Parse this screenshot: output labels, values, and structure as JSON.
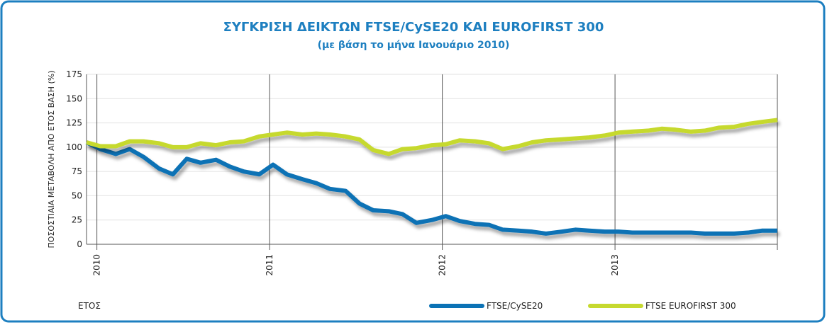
{
  "chart_data": {
    "type": "line",
    "title": "ΣΥΓΚΡΙΣΗ ΔΕΙΚΤΩΝ FTSE/CySE20 ΚΑΙ EUROFIRST 300",
    "subtitle": "(με βάση το μήνα Ιανουάριο 2010)",
    "y_label": "ΠΟΣΟΣΤΙΑΙΑ ΜΕΤΑΒΟΛΗ ΑΠΟ ΕΤΟΣ ΒΑΣΗ (%)",
    "x_label": "ΕΤΟΣ",
    "x": [
      2009.94,
      2010.02,
      2010.11,
      2010.19,
      2010.27,
      2010.36,
      2010.44,
      2010.52,
      2010.6,
      2010.69,
      2010.77,
      2010.85,
      2010.94,
      2011.02,
      2011.1,
      2011.19,
      2011.27,
      2011.35,
      2011.44,
      2011.52,
      2011.6,
      2011.69,
      2011.77,
      2011.85,
      2011.94,
      2012.02,
      2012.1,
      2012.19,
      2012.27,
      2012.35,
      2012.44,
      2012.52,
      2012.6,
      2012.69,
      2012.77,
      2012.85,
      2012.94,
      2013.02,
      2013.1,
      2013.19,
      2013.27,
      2013.35,
      2013.44,
      2013.52,
      2013.6,
      2013.69,
      2013.77,
      2013.85,
      2013.94
    ],
    "series": [
      {
        "name": "FTSE/CySE20",
        "color": "#0b72b5",
        "values": [
          105,
          98,
          93,
          98,
          90,
          78,
          72,
          88,
          84,
          87,
          80,
          75,
          72,
          82,
          72,
          67,
          63,
          57,
          55,
          42,
          35,
          34,
          31,
          22,
          25,
          29,
          24,
          21,
          20,
          15,
          14,
          13,
          11,
          13,
          15,
          14,
          13,
          13,
          12,
          12,
          12,
          12,
          12,
          11,
          11,
          11,
          12,
          14,
          14
        ]
      },
      {
        "name": "FTSE EUROFIRST 300",
        "color": "#c6d92f",
        "values": [
          105,
          101,
          101,
          106,
          106,
          104,
          100,
          100,
          104,
          102,
          105,
          106,
          111,
          113,
          115,
          113,
          114,
          113,
          111,
          108,
          97,
          93,
          98,
          99,
          102,
          103,
          107,
          106,
          104,
          98,
          101,
          105,
          107,
          108,
          109,
          110,
          112,
          115,
          116,
          117,
          119,
          118,
          116,
          117,
          120,
          121,
          124,
          126,
          128
        ]
      }
    ],
    "xlim": [
      2009.94,
      2013.94
    ],
    "xticks": [
      2010,
      2011,
      2012,
      2013
    ],
    "ylim": [
      0,
      175
    ],
    "yticks": [
      0,
      25,
      50,
      75,
      100,
      125,
      150,
      175
    ],
    "grid": true,
    "legend": "bottom-right"
  }
}
